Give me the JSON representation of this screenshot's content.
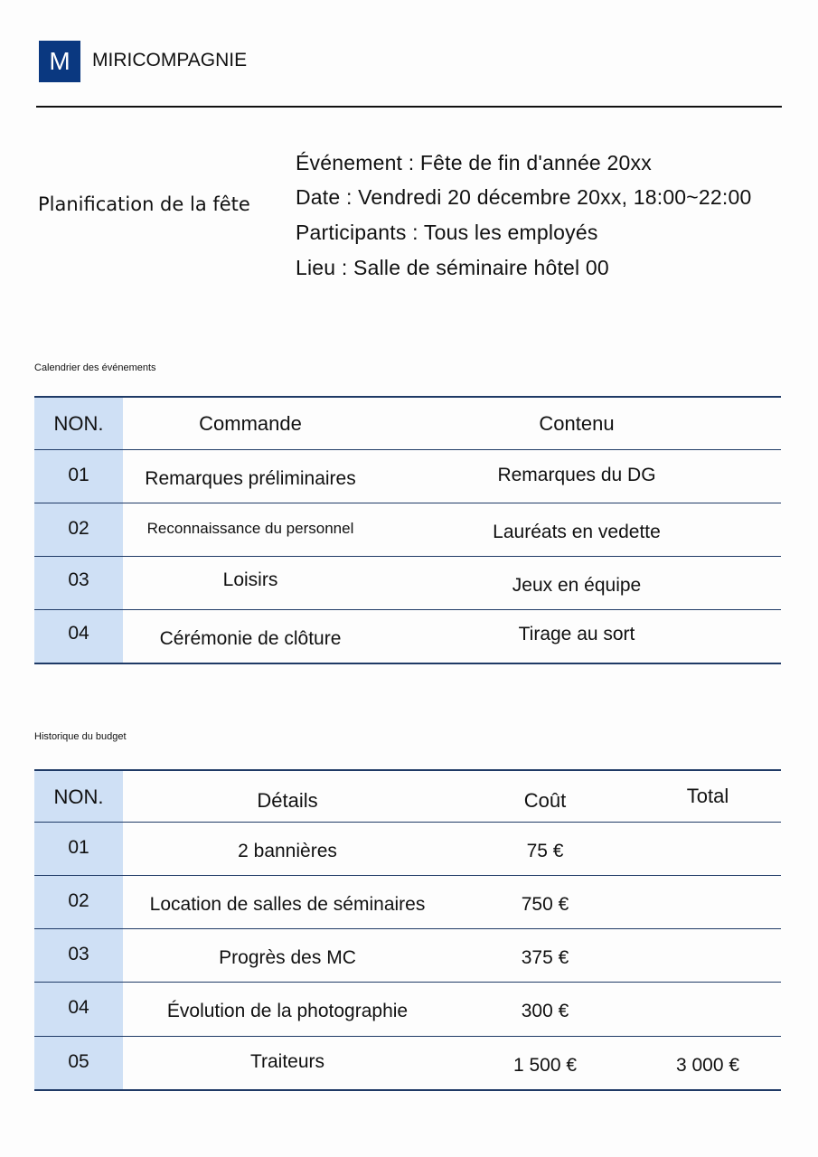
{
  "header": {
    "logo_letter": "M",
    "company": "MIRICOMPAGNIE"
  },
  "title": "Planification de la fête",
  "info": [
    "Événement : Fête de fin d'année 20xx",
    "Date : Vendredi 20 décembre 20xx, 18:00~22:00",
    "Participants : Tous les employés",
    "Lieu : Salle de séminaire hôtel 00"
  ],
  "schedule": {
    "caption": "Calendrier des événements",
    "headers": [
      "NON.",
      "Commande",
      "Contenu"
    ],
    "rows": [
      {
        "no": "01",
        "order": "Remarques préliminaires",
        "content": "Remarques du DG"
      },
      {
        "no": "02",
        "order": "Reconnaissance du personnel",
        "content": "Lauréats en vedette"
      },
      {
        "no": "03",
        "order": "Loisirs",
        "content": "Jeux en équipe"
      },
      {
        "no": "04",
        "order": "Cérémonie de clôture",
        "content": "Tirage au sort"
      }
    ]
  },
  "budget": {
    "caption": "Historique du budget",
    "headers": [
      "NON.",
      "Détails",
      "Coût",
      "Total"
    ],
    "rows": [
      {
        "no": "01",
        "detail": "2 bannières",
        "cost": "75 €",
        "total": ""
      },
      {
        "no": "02",
        "detail": "Location de salles de séminaires",
        "cost": "750 €",
        "total": ""
      },
      {
        "no": "03",
        "detail": "Progrès des MC",
        "cost": "375 €",
        "total": ""
      },
      {
        "no": "04",
        "detail": "Évolution de la photographie",
        "cost": "300 €",
        "total": ""
      },
      {
        "no": "05",
        "detail": "Traiteurs",
        "cost": "1 500 €",
        "total": "3 000 €"
      }
    ]
  },
  "colors": {
    "brand": "#0a3880",
    "number_column": "#cfe0f5",
    "rule": "#1f3a66"
  }
}
